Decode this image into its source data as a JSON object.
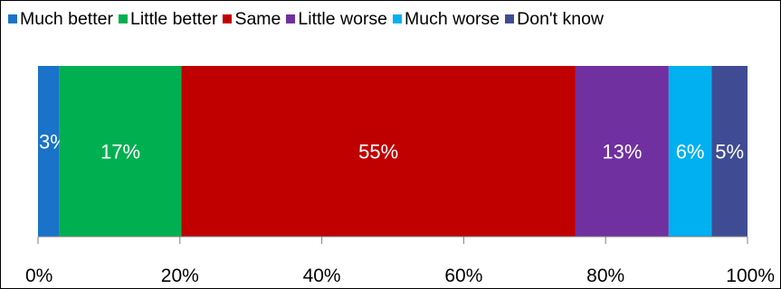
{
  "chart_data": {
    "type": "bar",
    "orientation": "horizontal",
    "stacked": true,
    "categories": [
      ""
    ],
    "series": [
      {
        "name": "Much better",
        "values": [
          3
        ],
        "label": "3%",
        "color": "#1a73c8"
      },
      {
        "name": "Little better",
        "values": [
          17
        ],
        "label": "17%",
        "color": "#00b050"
      },
      {
        "name": "Same",
        "values": [
          55
        ],
        "label": "55%",
        "color": "#c00000"
      },
      {
        "name": "Little worse",
        "values": [
          13
        ],
        "label": "13%",
        "color": "#7030a0"
      },
      {
        "name": "Much worse",
        "values": [
          6
        ],
        "label": "6%",
        "color": "#00b0f0"
      },
      {
        "name": "Don't know",
        "values": [
          5
        ],
        "label": "5%",
        "color": "#3f4c94"
      }
    ],
    "xlim": [
      0,
      100
    ],
    "x_ticks": [
      0,
      20,
      40,
      60,
      80,
      100
    ],
    "x_tick_labels": [
      "0%",
      "20%",
      "40%",
      "60%",
      "80%",
      "100%"
    ],
    "title": "",
    "xlabel": "",
    "ylabel": "",
    "grid": false,
    "legend_position": "top"
  }
}
